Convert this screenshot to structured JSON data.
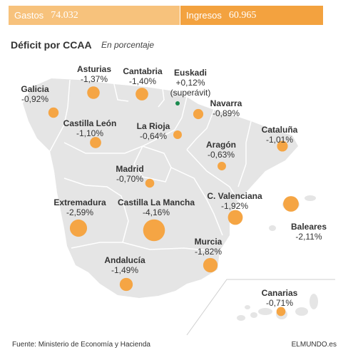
{
  "header": {
    "gastos_label": "Gastos",
    "gastos_value": "74.032",
    "ingresos_label": "Ingresos",
    "ingresos_value": "60.965"
  },
  "title": "Déficit por CCAA",
  "subtitle": "En porcentaje",
  "colors": {
    "bubble": "#f5a544",
    "land": "#e5e5e5",
    "border": "#ffffff",
    "surplus": "#1a8a4e",
    "bar_light": "#f7c27c",
    "bar_dark": "#f3a23f"
  },
  "regions": [
    {
      "name": "Galicia",
      "value": "-0,92%",
      "deficit": -0.92
    },
    {
      "name": "Asturias",
      "value": "-1,37%",
      "deficit": -1.37
    },
    {
      "name": "Cantabria",
      "value": "-1,40%",
      "deficit": -1.4
    },
    {
      "name": "Euskadi",
      "value": "+0,12%",
      "note": "(superávit)",
      "deficit": 0.12
    },
    {
      "name": "Navarra",
      "value": "-0,89%",
      "deficit": -0.89
    },
    {
      "name": "Castilla León",
      "value": "-1,10%",
      "deficit": -1.1
    },
    {
      "name": "La Rioja",
      "value": "-0,64%",
      "deficit": -0.64
    },
    {
      "name": "Cataluña",
      "value": "-1,01%",
      "deficit": -1.01
    },
    {
      "name": "Aragón",
      "value": "-0,63%",
      "deficit": -0.63
    },
    {
      "name": "Madrid",
      "value": "-0,70%",
      "deficit": -0.7
    },
    {
      "name": "Extremadura",
      "value": "-2,59%",
      "deficit": -2.59
    },
    {
      "name": "Castilla La Mancha",
      "value": "-4,16%",
      "deficit": -4.16
    },
    {
      "name": "C. Valenciana",
      "value": "-1,92%",
      "deficit": -1.92
    },
    {
      "name": "Baleares",
      "value": "-2,11%",
      "deficit": -2.11
    },
    {
      "name": "Murcia",
      "value": "-1,82%",
      "deficit": -1.82
    },
    {
      "name": "Andalucía",
      "value": "-1,49%",
      "deficit": -1.49
    },
    {
      "name": "Canarias",
      "value": "-0,71%",
      "deficit": -0.71
    }
  ],
  "footer": {
    "source": "Fuente: Ministerio de Economía y Hacienda",
    "brand": "ELMUNDO.es"
  }
}
